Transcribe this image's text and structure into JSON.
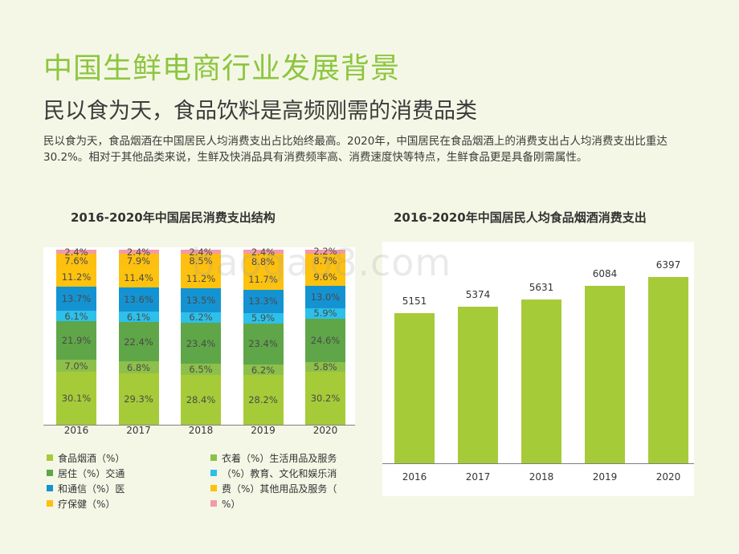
{
  "slide": {
    "title": "中国生鲜电商行业发展背景",
    "subtitle": "民以食为天，食品饮料是高频刚需的消费品类",
    "desc": "民以食为天，食品烟酒在中国居民人均消费支出占比始终最高。2020年，中国居民在食品烟酒上的消费支出占人均消费支出比重达30.2%。相对于其他品类来说，生鲜及快消品具有消费频率高、消费速度快等特点，生鲜食品更是具备刚需属性。",
    "watermark": "baogao8.com"
  },
  "chart_data": [
    {
      "type": "bar",
      "stacked": true,
      "title": "2016-2020年中国居民消费支出结构",
      "categories": [
        "2016",
        "2017",
        "2018",
        "2019",
        "2020"
      ],
      "series": [
        {
          "name": "食品烟酒（%）",
          "color": "#a6cb38",
          "values": [
            30.1,
            29.3,
            28.4,
            28.2,
            30.2
          ]
        },
        {
          "name": "衣着（%）",
          "color": "#8dc04a",
          "values": [
            7.0,
            6.8,
            6.5,
            6.2,
            5.8
          ]
        },
        {
          "name": "居住（%）",
          "color": "#5fa648",
          "values": [
            21.9,
            22.4,
            23.4,
            23.4,
            24.6
          ]
        },
        {
          "name": "生活用品及服务（%）",
          "color": "#2dc0ea",
          "values": [
            6.1,
            6.1,
            6.2,
            5.9,
            5.9
          ]
        },
        {
          "name": "交通和通信（%）",
          "color": "#1493d2",
          "values": [
            13.7,
            13.6,
            13.5,
            13.3,
            13.0
          ]
        },
        {
          "name": "教育、文化和娱乐消费（%）",
          "color": "#fdc20e",
          "values": [
            11.2,
            11.4,
            11.2,
            11.7,
            9.6
          ]
        },
        {
          "name": "医疗保健（%）",
          "color": "#fdbf10",
          "values": [
            7.6,
            7.9,
            8.5,
            8.8,
            8.7
          ]
        },
        {
          "name": "其他用品及服务（%）",
          "color": "#f29aaa",
          "values": [
            2.4,
            2.4,
            2.4,
            2.4,
            2.2
          ]
        }
      ],
      "ylim": [
        0,
        100
      ],
      "legend": [
        {
          "text": "食品烟酒（%）",
          "color": "#a6cb38"
        },
        {
          "text": "衣着（%）生活用品及服务",
          "color": "#8dc04a"
        },
        {
          "text": "居住（%）交通",
          "color": "#5fa648"
        },
        {
          "text": "（%）教育、文化和娱乐消",
          "color": "#2dc0ea"
        },
        {
          "text": "和通信（%）医",
          "color": "#1493d2"
        },
        {
          "text": "费（%）其他用品及服务（",
          "color": "#fdc20e"
        },
        {
          "text": "疗保健（%）",
          "color": "#fdbf10"
        },
        {
          "text": "%）",
          "color": "#f29aaa"
        }
      ]
    },
    {
      "type": "bar",
      "title": "2016-2020年中国居民人均食品烟酒消费支出",
      "categories": [
        "2016",
        "2017",
        "2018",
        "2019",
        "2020"
      ],
      "values": [
        5151,
        5374,
        5631,
        6084,
        6397
      ],
      "color": "#a6cb38",
      "ylim": [
        0,
        7600
      ]
    }
  ]
}
